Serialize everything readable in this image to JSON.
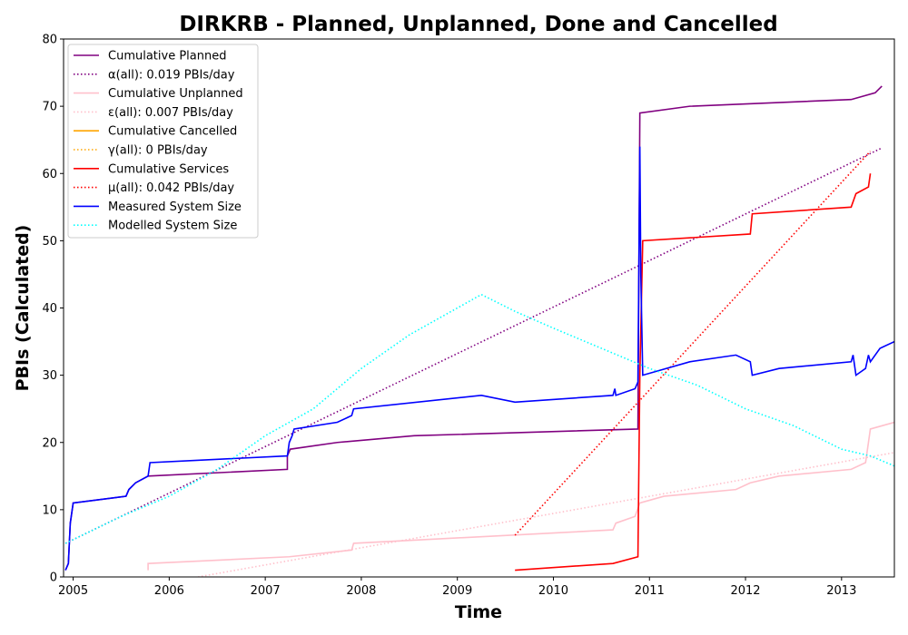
{
  "chart_data": {
    "type": "line",
    "title": "DIRKRB - Planned, Unplanned, Done  and Cancelled",
    "xlabel": "Time",
    "ylabel": "PBIs (Calculated)",
    "xlim": [
      2004.9,
      2013.55
    ],
    "ylim": [
      0,
      80
    ],
    "xticks": [
      2005,
      2006,
      2007,
      2008,
      2009,
      2010,
      2011,
      2012,
      2013
    ],
    "yticks": [
      0,
      10,
      20,
      30,
      40,
      50,
      60,
      70,
      80
    ],
    "grid": false,
    "legend_position": "top-left",
    "series": [
      {
        "name": "Cumulative Planned",
        "color": "#800080",
        "dash": "solid",
        "points": [
          [
            2004.92,
            1
          ],
          [
            2004.95,
            2
          ],
          [
            2004.97,
            8
          ],
          [
            2005.0,
            11
          ],
          [
            2005.55,
            12
          ],
          [
            2005.58,
            13
          ],
          [
            2005.65,
            14
          ],
          [
            2005.78,
            15
          ],
          [
            2007.23,
            16
          ],
          [
            2007.23,
            18
          ],
          [
            2007.26,
            19
          ],
          [
            2007.75,
            20
          ],
          [
            2008.55,
            21
          ],
          [
            2010.88,
            22
          ],
          [
            2010.9,
            69
          ],
          [
            2011.42,
            70
          ],
          [
            2013.1,
            71
          ],
          [
            2013.35,
            72
          ],
          [
            2013.42,
            73
          ]
        ]
      },
      {
        "name": "α(all): 0.019 PBIs/day",
        "color": "#800080",
        "dash": "dotted",
        "points": [
          [
            2004.92,
            5
          ],
          [
            2013.42,
            63.8
          ]
        ]
      },
      {
        "name": "Cumulative Unplanned",
        "color": "#ffc0cb",
        "dash": "solid",
        "points": [
          [
            2005.78,
            1
          ],
          [
            2005.78,
            2
          ],
          [
            2007.25,
            3
          ],
          [
            2007.9,
            4
          ],
          [
            2007.92,
            5
          ],
          [
            2010.62,
            7
          ],
          [
            2010.65,
            8
          ],
          [
            2010.85,
            9
          ],
          [
            2010.9,
            11
          ],
          [
            2011.15,
            12
          ],
          [
            2011.9,
            13
          ],
          [
            2012.05,
            14
          ],
          [
            2012.35,
            15
          ],
          [
            2013.1,
            16
          ],
          [
            2013.25,
            17
          ],
          [
            2013.3,
            22
          ],
          [
            2013.55,
            23
          ]
        ]
      },
      {
        "name": "ε(all): 0.007 PBIs/day",
        "color": "#ffc0cb",
        "dash": "dotted",
        "points": [
          [
            2006.3,
            0
          ],
          [
            2013.55,
            18.5
          ]
        ]
      },
      {
        "name": "Cumulative Cancelled",
        "color": "#ffa500",
        "dash": "solid",
        "points": []
      },
      {
        "name": "γ(all): 0 PBIs/day",
        "color": "#ffa500",
        "dash": "dotted",
        "points": []
      },
      {
        "name": "Cumulative Services",
        "color": "#ff0000",
        "dash": "solid",
        "points": [
          [
            2009.6,
            1
          ],
          [
            2010.62,
            2
          ],
          [
            2010.88,
            3
          ],
          [
            2010.9,
            30
          ],
          [
            2010.93,
            50
          ],
          [
            2012.05,
            51
          ],
          [
            2012.07,
            54
          ],
          [
            2013.1,
            55
          ],
          [
            2013.15,
            57
          ],
          [
            2013.28,
            58
          ],
          [
            2013.3,
            60
          ]
        ]
      },
      {
        "name": "μ(all): 0.042 PBIs/day",
        "color": "#ff0000",
        "dash": "dotted",
        "points": [
          [
            2009.6,
            6.2
          ],
          [
            2013.3,
            63.3
          ]
        ]
      },
      {
        "name": "Measured System Size",
        "color": "#0000ff",
        "dash": "solid",
        "points": [
          [
            2004.92,
            1
          ],
          [
            2004.95,
            2
          ],
          [
            2004.97,
            8
          ],
          [
            2005.0,
            11
          ],
          [
            2005.55,
            12
          ],
          [
            2005.58,
            13
          ],
          [
            2005.65,
            14
          ],
          [
            2005.78,
            15
          ],
          [
            2005.8,
            17
          ],
          [
            2007.23,
            18
          ],
          [
            2007.25,
            20
          ],
          [
            2007.28,
            21
          ],
          [
            2007.3,
            22
          ],
          [
            2007.75,
            23
          ],
          [
            2007.9,
            24
          ],
          [
            2007.92,
            25
          ],
          [
            2009.25,
            27
          ],
          [
            2009.6,
            26
          ],
          [
            2010.62,
            27
          ],
          [
            2010.64,
            28
          ],
          [
            2010.65,
            27
          ],
          [
            2010.85,
            28
          ],
          [
            2010.88,
            29
          ],
          [
            2010.9,
            64
          ],
          [
            2010.91,
            45
          ],
          [
            2010.93,
            30
          ],
          [
            2011.42,
            32
          ],
          [
            2011.9,
            33
          ],
          [
            2012.05,
            32
          ],
          [
            2012.07,
            30
          ],
          [
            2012.35,
            31
          ],
          [
            2013.1,
            32
          ],
          [
            2013.12,
            33
          ],
          [
            2013.15,
            30
          ],
          [
            2013.25,
            31
          ],
          [
            2013.28,
            33
          ],
          [
            2013.3,
            32
          ],
          [
            2013.4,
            34
          ],
          [
            2013.55,
            35
          ]
        ]
      },
      {
        "name": "Modelled System Size",
        "color": "#00ffff",
        "dash": "dotted",
        "points": [
          [
            2004.92,
            5
          ],
          [
            2005.5,
            9
          ],
          [
            2006.0,
            12
          ],
          [
            2006.5,
            16
          ],
          [
            2007.0,
            21
          ],
          [
            2007.5,
            25
          ],
          [
            2008.0,
            31
          ],
          [
            2008.5,
            36
          ],
          [
            2009.0,
            40
          ],
          [
            2009.25,
            42
          ],
          [
            2009.6,
            39.5
          ],
          [
            2010.0,
            37
          ],
          [
            2010.5,
            34
          ],
          [
            2011.0,
            31
          ],
          [
            2011.5,
            28.5
          ],
          [
            2012.0,
            25
          ],
          [
            2012.5,
            22.5
          ],
          [
            2013.0,
            19
          ],
          [
            2013.3,
            18
          ],
          [
            2013.55,
            16.5
          ]
        ]
      }
    ]
  }
}
